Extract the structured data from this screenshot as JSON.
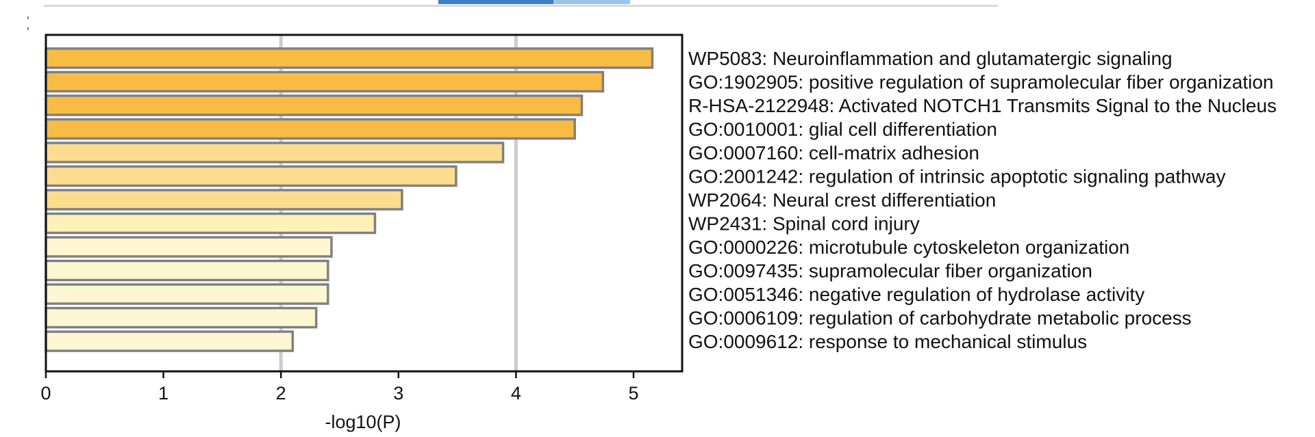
{
  "chart_data": {
    "type": "bar",
    "orientation": "horizontal",
    "title": "",
    "xlabel": "-log10(P)",
    "ylabel": "",
    "xlim": [
      0,
      5.45
    ],
    "xticks": [
      "0",
      "1",
      "2",
      "3",
      "4",
      "5"
    ],
    "gridlines_at": [
      2,
      4
    ],
    "categories": [
      "WP5083: Neuroinflammation and glutamatergic signaling",
      "GO:1902905: positive regulation of supramolecular fiber organization",
      "R-HSA-2122948: Activated NOTCH1 Transmits Signal to the Nucleus",
      "GO:0010001: glial cell differentiation",
      "GO:0007160: cell-matrix adhesion",
      "GO:2001242: regulation of intrinsic apoptotic signaling pathway",
      "WP2064: Neural crest differentiation",
      "WP2431: Spinal cord injury",
      "GO:0000226: microtubule cytoskeleton organization",
      "GO:0097435: supramolecular fiber organization",
      "GO:0051346: negative regulation of hydrolase activity",
      "GO:0006109: regulation of carbohydrate metabolic process",
      "GO:0009612: response to mechanical stimulus"
    ],
    "values": [
      5.16,
      4.74,
      4.56,
      4.5,
      3.89,
      3.49,
      3.03,
      2.8,
      2.43,
      2.4,
      2.4,
      2.3,
      2.1
    ],
    "bar_colors": [
      "#f8bc45",
      "#f8bc45",
      "#f8bc45",
      "#f8bc45",
      "#fcdc8e",
      "#fcdc8e",
      "#fcdc8e",
      "#fdf0b8",
      "#fef6d0",
      "#fef6d0",
      "#fef6d0",
      "#fef6d0",
      "#fef6d0"
    ],
    "bar_outline_color": "#808080",
    "grid": true,
    "grid_color": "#cccccc"
  }
}
